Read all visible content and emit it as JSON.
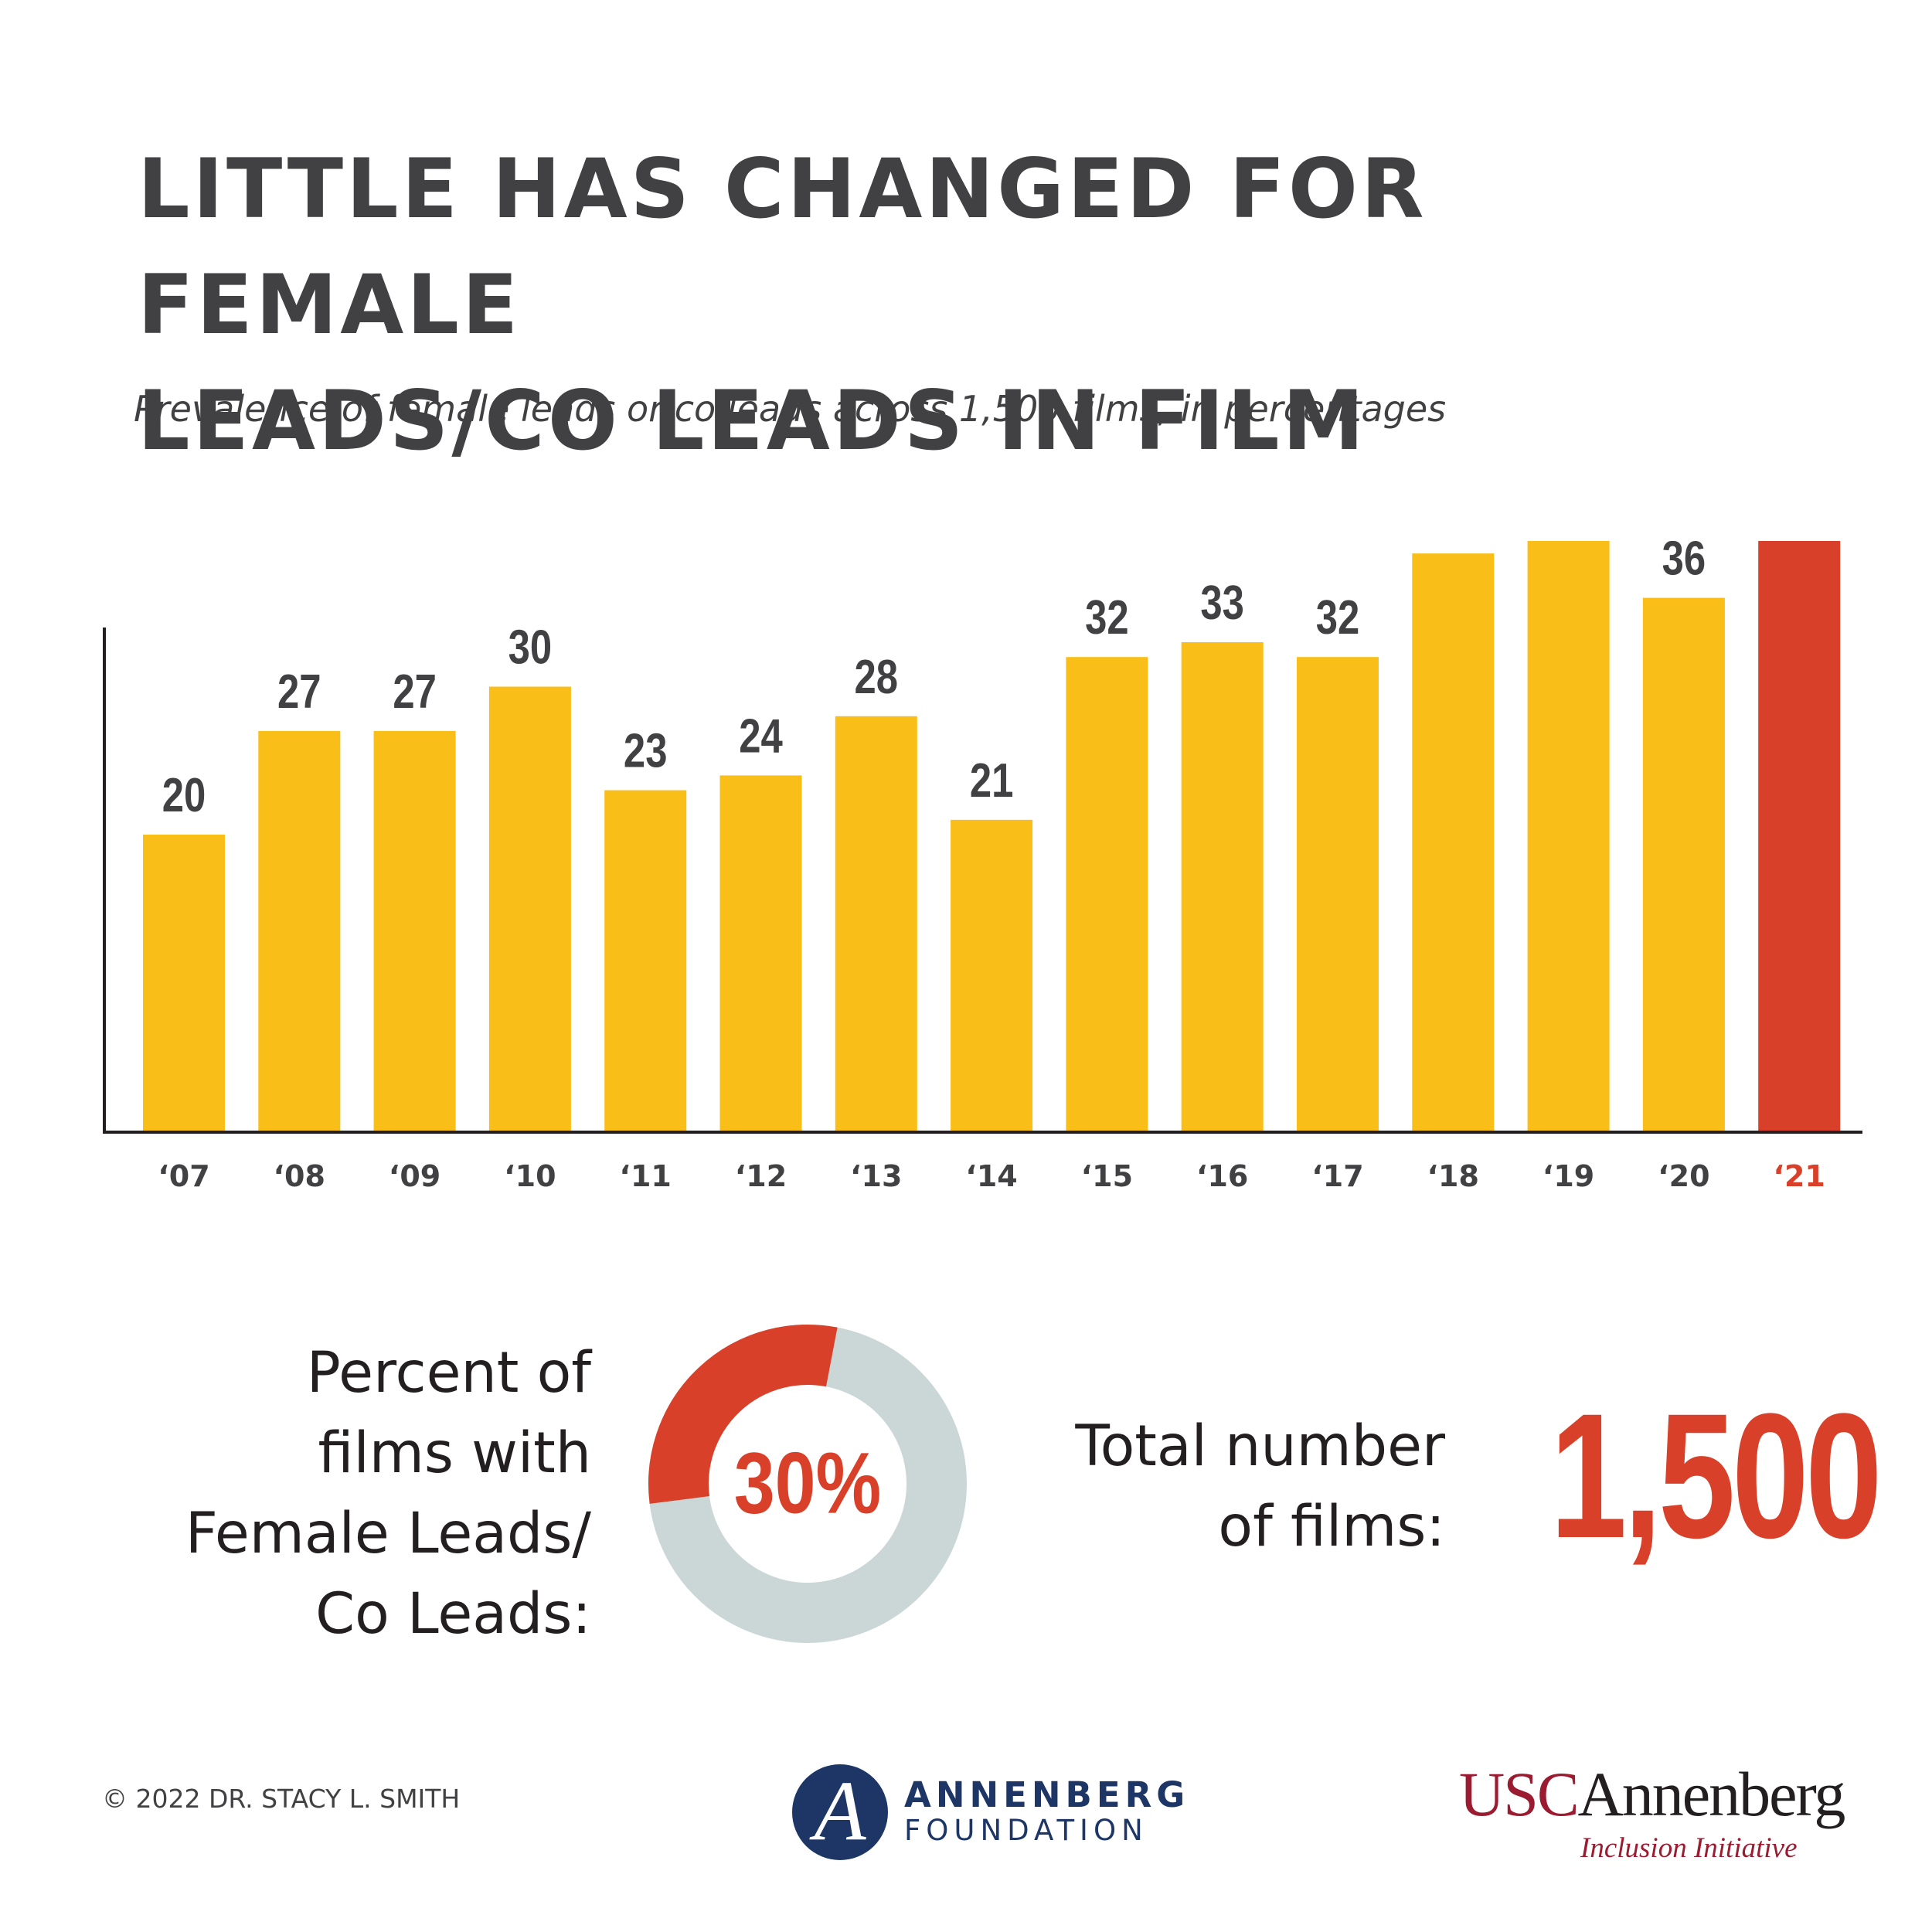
{
  "header": {
    "title_line1": "LITTLE HAS CHANGED FOR FEMALE",
    "title_line2": "LEADS/CO LEADS IN FILM",
    "subtitle": "Prevalence of female leads or co leads across 1,500 films, in percentages"
  },
  "chart_data": {
    "type": "bar",
    "categories": [
      "‘07",
      "‘08",
      "‘09",
      "‘10",
      "‘11",
      "‘12",
      "‘13",
      "‘14",
      "‘15",
      "‘16",
      "‘17",
      "‘18",
      "‘19",
      "‘20",
      "‘21"
    ],
    "values": [
      20,
      27,
      27,
      30,
      23,
      24,
      28,
      21,
      32,
      33,
      32,
      39,
      43,
      36,
      41
    ],
    "highlight_index": 14,
    "colors": {
      "bar": "#f9be17",
      "highlight": "#d9402a",
      "label": "#414042",
      "axis": "#231f20"
    },
    "ylim": [
      0,
      50
    ],
    "grid": false,
    "title": "",
    "xlabel": "",
    "ylabel": ""
  },
  "donut": {
    "label_lines": [
      "Percent of",
      "films with",
      "Female Leads/",
      "Co Leads:"
    ],
    "value_text": "30%",
    "fraction": 0.3,
    "colors": {
      "filled": "#d9402a",
      "remaining": "#cbd7d7",
      "text": "#d9402a"
    }
  },
  "total": {
    "label_lines": [
      "Total number",
      "of films:"
    ],
    "value": "1,500"
  },
  "footer": {
    "copyright": "© 2022 DR. STACY L. SMITH",
    "annenberg_foundation": {
      "name": "ANNENBERG",
      "sub": "FOUNDATION",
      "emblem": "A"
    },
    "usc": {
      "usc": "USC",
      "annenberg": "Annenberg",
      "sub": "Inclusion Initiative"
    }
  }
}
